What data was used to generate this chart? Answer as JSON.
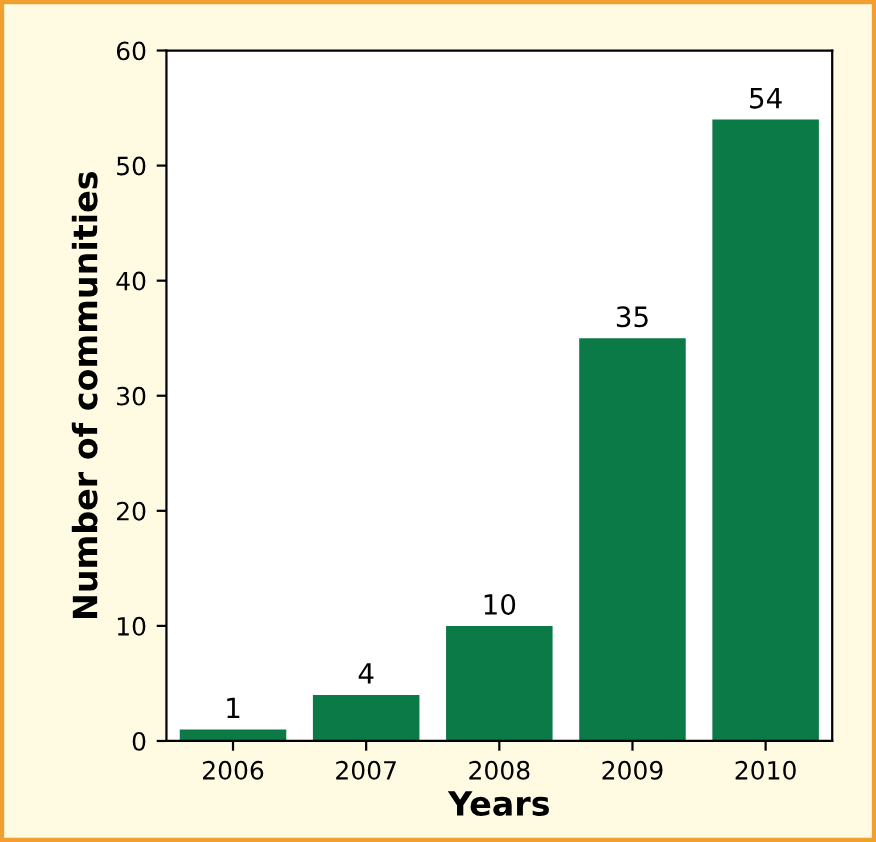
{
  "chart_data": {
    "type": "bar",
    "xlabel": "Years",
    "ylabel": "Number of communities",
    "categories": [
      "2006",
      "2007",
      "2008",
      "2009",
      "2010"
    ],
    "values": [
      1,
      4,
      10,
      35,
      54
    ],
    "color": "#0b7a47",
    "ylim": [
      0,
      60
    ],
    "yticks": [
      0,
      10,
      20,
      30,
      40,
      50,
      60
    ],
    "grid": false,
    "data_labels": true
  }
}
